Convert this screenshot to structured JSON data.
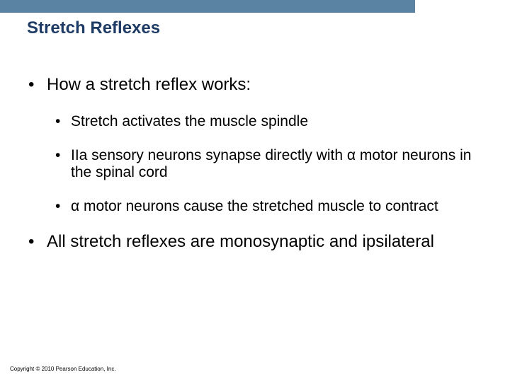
{
  "header_bar_color": "#5a83a3",
  "title": {
    "text": "Stretch Reflexes",
    "color": "#1e3b66",
    "fontsize": 24
  },
  "body_fontsize_l1": 24,
  "body_fontsize_l2": 21,
  "body_color": "#000000",
  "bullets": {
    "l1_1": "How a stretch reflex works:",
    "l2_1": "Stretch activates the muscle spindle",
    "l2_2": "IIa sensory neurons synapse directly with α motor neurons in the spinal cord",
    "l2_3": "α motor neurons cause the stretched muscle to contract",
    "l1_2": "All stretch reflexes are monosynaptic and ipsilateral"
  },
  "copyright": {
    "text": "Copyright © 2010 Pearson Education, Inc.",
    "fontsize": 8,
    "color": "#000000"
  }
}
